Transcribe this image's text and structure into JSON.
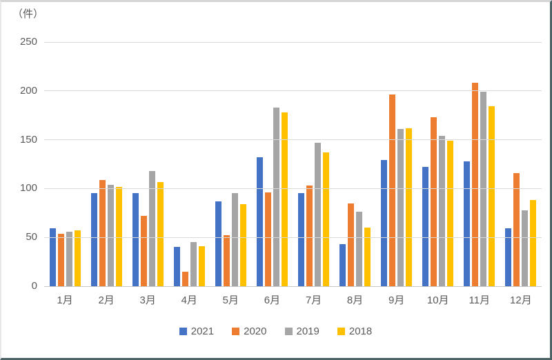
{
  "chart_data": {
    "type": "bar",
    "title": "（件）",
    "categories": [
      "1月",
      "2月",
      "3月",
      "4月",
      "5月",
      "6月",
      "7月",
      "8月",
      "9月",
      "10月",
      "11月",
      "12月"
    ],
    "series": [
      {
        "name": "2021",
        "color": "#4472C4",
        "values": [
          59,
          95,
          95,
          40,
          87,
          132,
          95,
          43,
          129,
          122,
          128,
          59
        ]
      },
      {
        "name": "2020",
        "color": "#ED7D31",
        "values": [
          54,
          109,
          72,
          15,
          52,
          96,
          103,
          85,
          196,
          173,
          208,
          116
        ]
      },
      {
        "name": "2019",
        "color": "#A5A5A5",
        "values": [
          56,
          104,
          118,
          45,
          95,
          183,
          147,
          76,
          161,
          154,
          199,
          78
        ]
      },
      {
        "name": "2018",
        "color": "#FFC000",
        "values": [
          57,
          102,
          107,
          41,
          84,
          178,
          137,
          60,
          162,
          149,
          184,
          88
        ]
      }
    ],
    "xlabel": "",
    "ylabel": "（件）",
    "ylim": [
      0,
      250
    ],
    "ytick_interval": 50,
    "yticks": [
      "0",
      "50",
      "100",
      "150",
      "200",
      "250"
    ],
    "grid": true,
    "legend_position": "bottom",
    "colors": {
      "grid": "#d9d9d9",
      "axis_text": "#595959",
      "frame_shadow": "#4b6365"
    }
  }
}
